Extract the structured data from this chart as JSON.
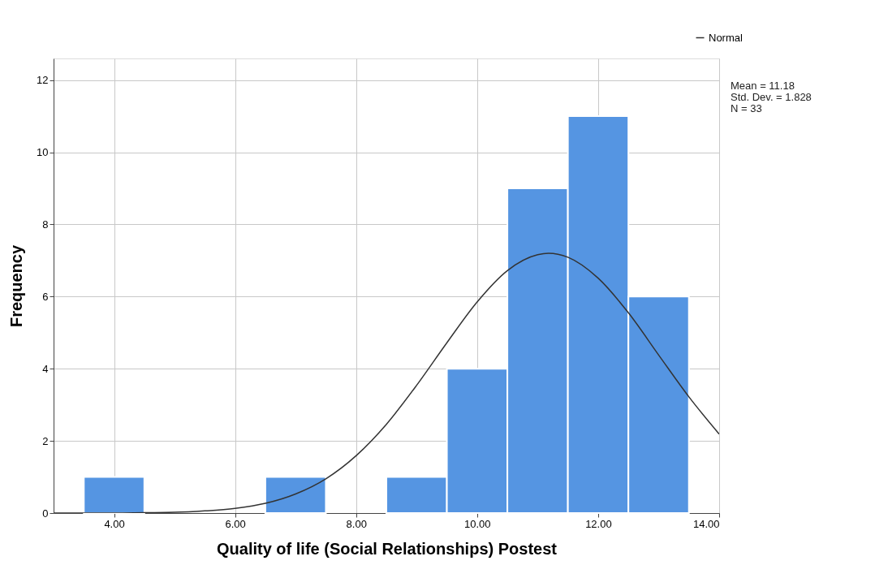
{
  "chart_data": {
    "type": "histogram",
    "xlabel": "Quality of life (Social Relationships)  Postest",
    "ylabel": "Frequency",
    "bins": [
      3.5,
      4.5,
      5.5,
      6.5,
      7.5,
      8.5,
      9.5,
      10.5,
      11.5,
      12.5,
      13.5
    ],
    "values": [
      1,
      0,
      0,
      1,
      0,
      1,
      4,
      9,
      11,
      6
    ],
    "color": "#5595e2",
    "series": [
      {
        "name": "Normal",
        "type": "line",
        "color": "#333333",
        "x": [
          3,
          3.5,
          4,
          4.5,
          5,
          5.5,
          6,
          6.5,
          7,
          7.5,
          8,
          8.5,
          9,
          9.5,
          10,
          10.5,
          11,
          11.18,
          11.5,
          12,
          12.5,
          13,
          13.5,
          14
        ],
        "values": [
          0,
          0,
          0,
          0.01,
          0.02,
          0.06,
          0.13,
          0.27,
          0.53,
          0.95,
          1.59,
          2.46,
          3.54,
          4.72,
          5.85,
          6.72,
          7.16,
          7.2,
          7.09,
          6.51,
          5.55,
          4.38,
          3.22,
          2.19
        ]
      }
    ],
    "xlim": [
      3,
      14
    ],
    "xticks": [
      {
        "value": 4,
        "label": "4.00"
      },
      {
        "value": 6,
        "label": "6.00"
      },
      {
        "value": 8,
        "label": "8.00"
      },
      {
        "value": 10,
        "label": "10.00"
      },
      {
        "value": 12,
        "label": "12.00"
      },
      {
        "value": 14,
        "label": "14.00"
      }
    ],
    "ylim": [
      0,
      12.6
    ],
    "yticks": [
      0,
      2,
      4,
      6,
      8,
      10,
      12
    ],
    "grid": true,
    "legend": "top right",
    "annotations": [
      "Mean = 11.18",
      "Std. Dev. = 1.828",
      "N = 33"
    ]
  }
}
